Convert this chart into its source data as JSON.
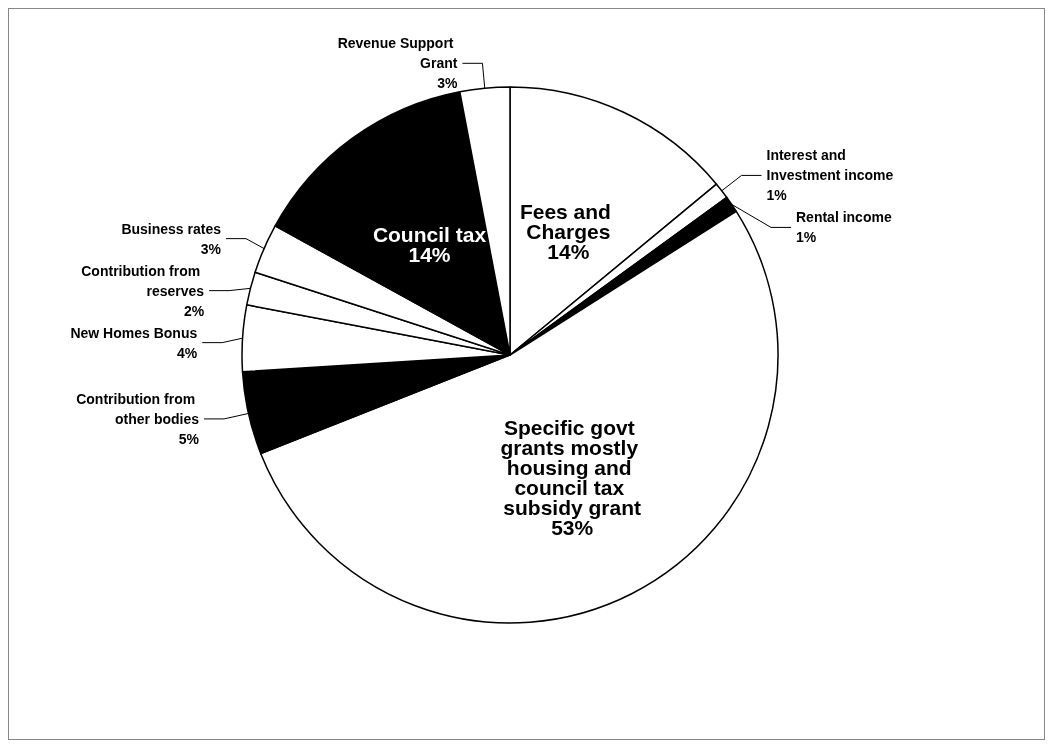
{
  "chart_data": {
    "type": "pie",
    "categories": [
      "Fees and Charges",
      "Interest and Investment income",
      "Rental income",
      "Specific govt grants mostly housing and council tax subsidy grant",
      "Contribution from other bodies",
      "New Homes Bonus",
      "Contribution from reserves",
      "Business rates",
      "Council tax",
      "Revenue Support Grant"
    ],
    "values": [
      14,
      1,
      1,
      53,
      5,
      4,
      2,
      3,
      14,
      3
    ],
    "colors": [
      "#ffffff",
      "#ffffff",
      "#000000",
      "#ffffff",
      "#000000",
      "#ffffff",
      "#ffffff",
      "#ffffff",
      "#000000",
      "#ffffff"
    ],
    "value_labels": [
      "14%",
      "1%",
      "1%",
      "53%",
      "5%",
      "4%",
      "2%",
      "3%",
      "14%",
      "3%"
    ],
    "legend": false
  }
}
